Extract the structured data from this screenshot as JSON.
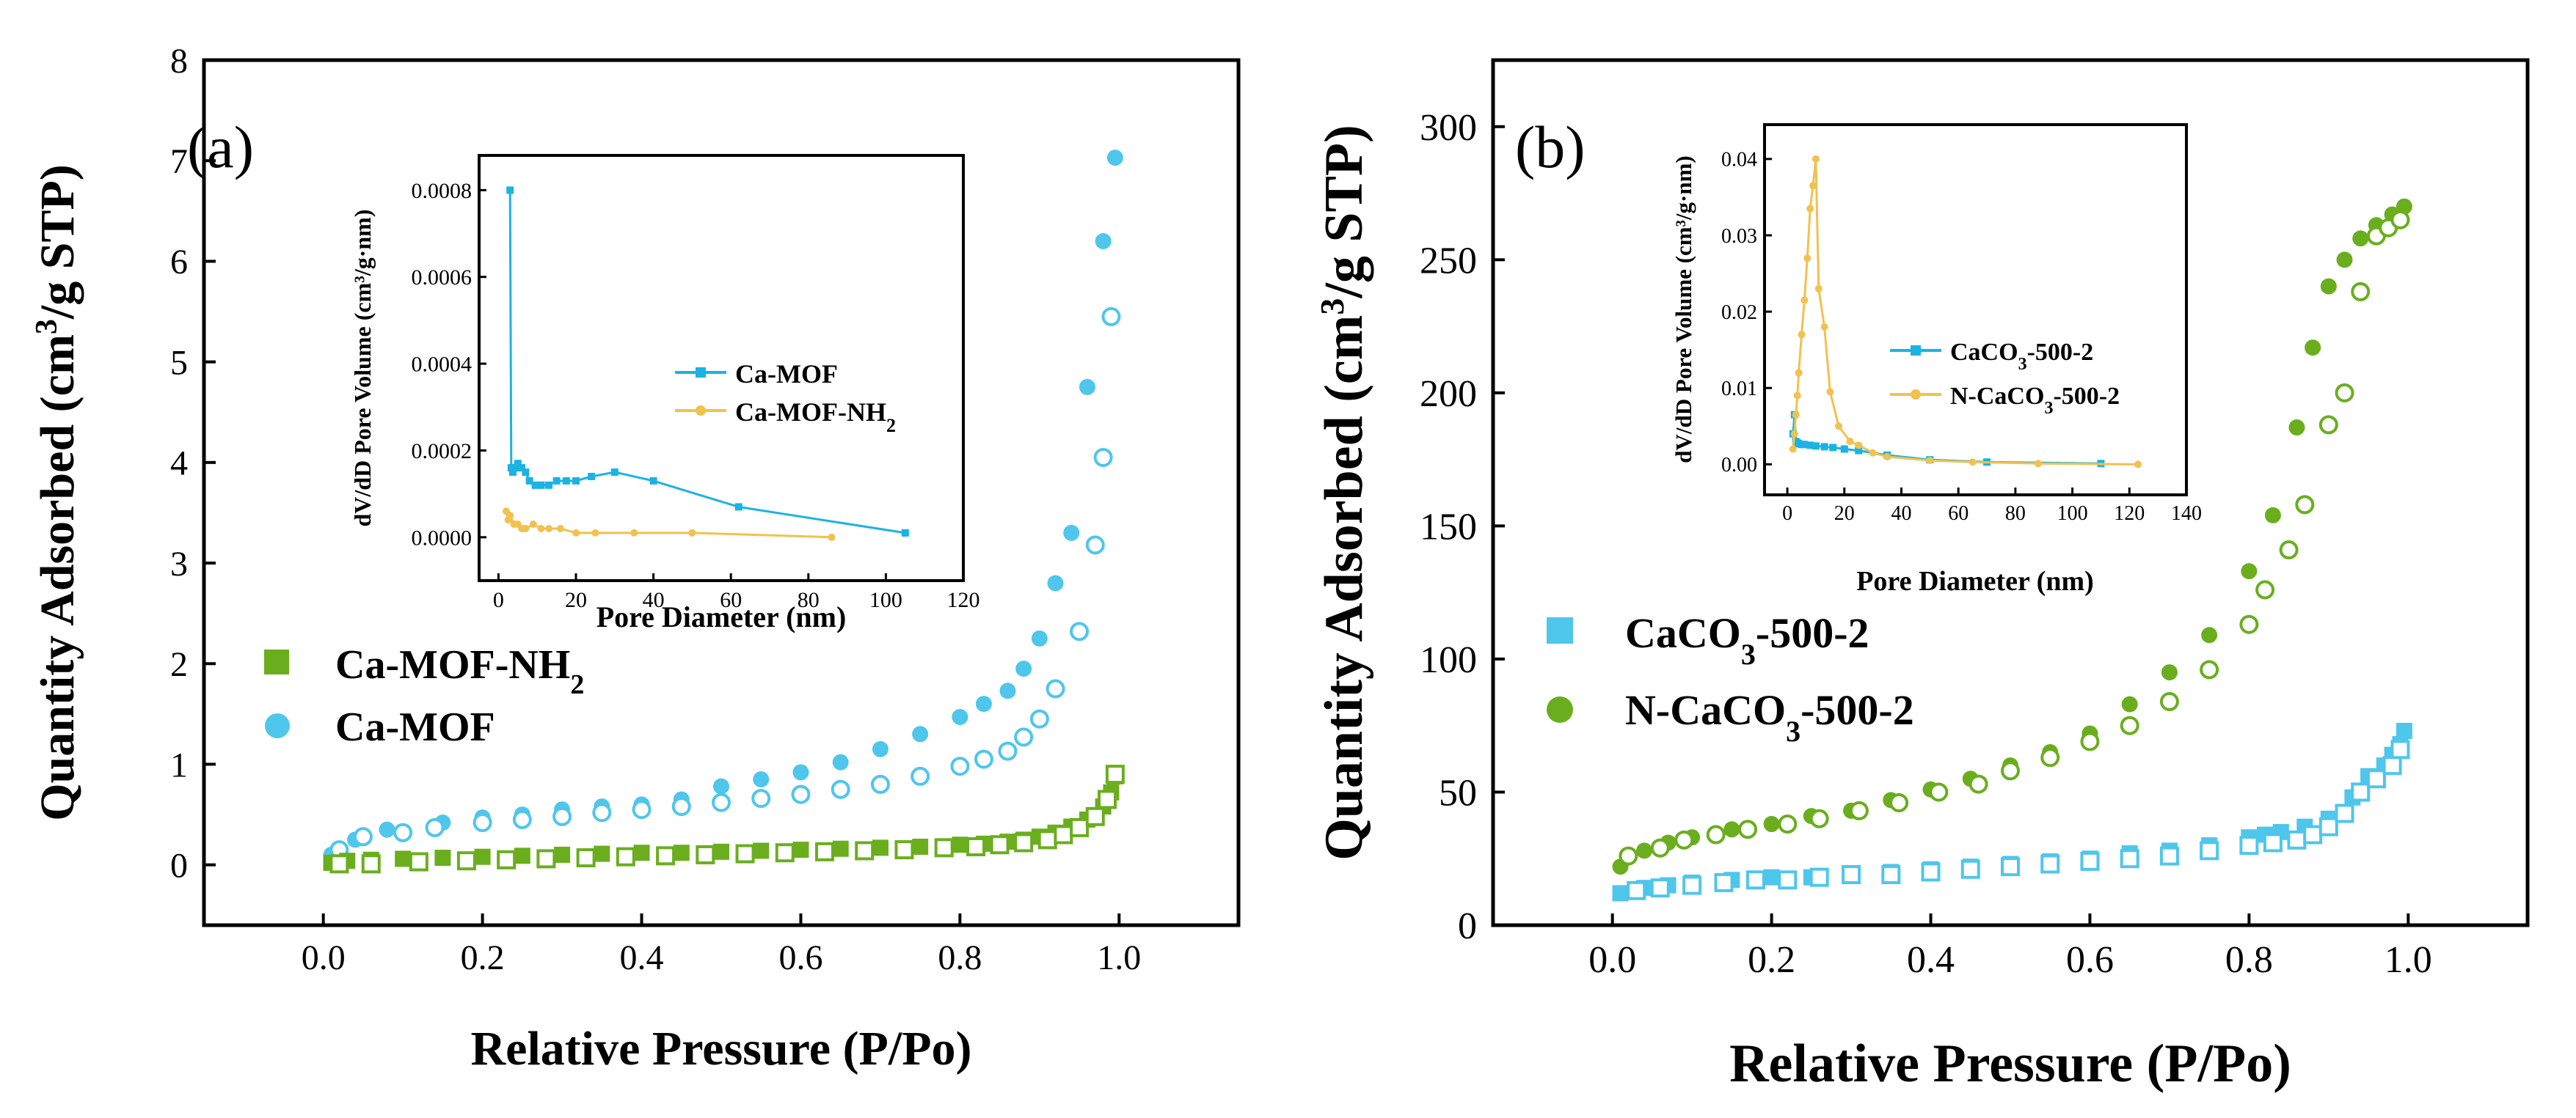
{
  "colors": {
    "blue": "#4FC6EC",
    "green": "#6AAE1E",
    "yellow": "#F2C14E",
    "inset_blue": "#1AB3E3"
  },
  "chart_data": [
    {
      "type": "scatter",
      "panel_label": "(a)",
      "xlabel": "Relative Pressure (P/Po)",
      "ylabel_main": "Quantity Adsorbed (cm",
      "ylabel_sup": "3",
      "ylabel_tail": "/g STP)",
      "xlim": [
        -0.15,
        1.15
      ],
      "ylim": [
        -0.6,
        8
      ],
      "xticks": [
        0.0,
        0.2,
        0.4,
        0.6,
        0.8,
        1.0
      ],
      "xtick_labels": [
        "0.0",
        "0.2",
        "0.4",
        "0.6",
        "0.8",
        "1.0"
      ],
      "yticks": [
        0,
        1,
        2,
        3,
        4,
        5,
        6,
        7,
        8
      ],
      "ytick_labels": [
        "0",
        "1",
        "2",
        "3",
        "4",
        "5",
        "6",
        "7",
        "8"
      ],
      "legend": [
        {
          "marker": "square",
          "color_key": "green",
          "text": "Ca-MOF-NH",
          "sub": "2"
        },
        {
          "marker": "circle",
          "color_key": "blue",
          "text": "Ca-MOF",
          "sub": ""
        }
      ],
      "series": [
        {
          "name": "Ca-MOF adsorption",
          "marker": "circle",
          "filled": true,
          "color_key": "blue",
          "x": [
            0.01,
            0.04,
            0.08,
            0.15,
            0.2,
            0.25,
            0.3,
            0.35,
            0.4,
            0.45,
            0.5,
            0.55,
            0.6,
            0.65,
            0.7,
            0.75,
            0.8,
            0.83,
            0.86,
            0.88,
            0.9,
            0.92,
            0.94,
            0.96,
            0.98,
            0.995
          ],
          "y": [
            0.1,
            0.25,
            0.35,
            0.42,
            0.47,
            0.5,
            0.55,
            0.58,
            0.6,
            0.65,
            0.78,
            0.85,
            0.92,
            1.02,
            1.15,
            1.3,
            1.47,
            1.6,
            1.73,
            1.95,
            2.25,
            2.8,
            3.3,
            4.75,
            6.2,
            7.03
          ]
        },
        {
          "name": "Ca-MOF desorption",
          "marker": "circle",
          "filled": false,
          "color_key": "blue",
          "x": [
            0.02,
            0.05,
            0.1,
            0.14,
            0.2,
            0.25,
            0.3,
            0.35,
            0.4,
            0.45,
            0.5,
            0.55,
            0.6,
            0.65,
            0.7,
            0.75,
            0.8,
            0.83,
            0.86,
            0.88,
            0.9,
            0.92,
            0.95,
            0.97,
            0.98,
            0.99
          ],
          "y": [
            0.15,
            0.28,
            0.32,
            0.37,
            0.42,
            0.45,
            0.48,
            0.52,
            0.55,
            0.58,
            0.62,
            0.66,
            0.7,
            0.75,
            0.8,
            0.88,
            0.98,
            1.05,
            1.13,
            1.27,
            1.45,
            1.75,
            2.32,
            3.18,
            4.05,
            5.45
          ]
        },
        {
          "name": "Ca-MOF-NH2 adsorption",
          "marker": "square",
          "filled": true,
          "color_key": "green",
          "x": [
            0.01,
            0.03,
            0.06,
            0.1,
            0.15,
            0.2,
            0.25,
            0.3,
            0.35,
            0.4,
            0.45,
            0.5,
            0.55,
            0.6,
            0.65,
            0.7,
            0.75,
            0.8,
            0.83,
            0.86,
            0.88,
            0.9,
            0.92,
            0.94,
            0.96,
            0.98,
            0.99,
            0.995
          ],
          "y": [
            0.02,
            0.04,
            0.05,
            0.06,
            0.07,
            0.08,
            0.09,
            0.1,
            0.11,
            0.12,
            0.12,
            0.13,
            0.14,
            0.15,
            0.16,
            0.17,
            0.18,
            0.2,
            0.21,
            0.23,
            0.25,
            0.28,
            0.32,
            0.38,
            0.45,
            0.58,
            0.72,
            0.88
          ]
        },
        {
          "name": "Ca-MOF-NH2 desorption",
          "marker": "square",
          "filled": false,
          "color_key": "green",
          "x": [
            0.02,
            0.06,
            0.12,
            0.18,
            0.23,
            0.28,
            0.33,
            0.38,
            0.43,
            0.48,
            0.53,
            0.58,
            0.63,
            0.68,
            0.73,
            0.78,
            0.82,
            0.85,
            0.88,
            0.91,
            0.93,
            0.95,
            0.97,
            0.985,
            0.995
          ],
          "y": [
            0.01,
            0.01,
            0.03,
            0.04,
            0.05,
            0.06,
            0.07,
            0.08,
            0.09,
            0.1,
            0.11,
            0.12,
            0.13,
            0.14,
            0.15,
            0.17,
            0.18,
            0.2,
            0.22,
            0.25,
            0.3,
            0.37,
            0.48,
            0.65,
            0.9
          ]
        }
      ],
      "inset": {
        "type": "line",
        "xlabel": "Pore Diameter (nm)",
        "ylabel": "dV/dD Pore Volume (cm³/g·nm)",
        "xlim": [
          -5,
          120
        ],
        "ylim": [
          -0.0001,
          0.00088
        ],
        "xticks": [
          0,
          20,
          40,
          60,
          80,
          100,
          120
        ],
        "xtick_labels": [
          "0",
          "20",
          "40",
          "60",
          "80",
          "100",
          "120"
        ],
        "yticks": [
          0.0,
          0.0002,
          0.0004,
          0.0006,
          0.0008
        ],
        "ytick_labels": [
          "0.0000",
          "0.0002",
          "0.0004",
          "0.0006",
          "0.0008"
        ],
        "legend": [
          {
            "color_key": "inset_blue",
            "marker": "square",
            "text": "Ca-MOF",
            "sub": ""
          },
          {
            "color_key": "yellow",
            "marker": "circle",
            "text": "Ca-MOF-NH",
            "sub": "2"
          }
        ],
        "series": [
          {
            "name": "Ca-MOF",
            "color_key": "inset_blue",
            "marker": "square",
            "x": [
              3,
              3.3,
              3.7,
              4.2,
              5,
              6,
              7,
              8,
              9.5,
              11,
              13,
              15,
              17.5,
              20,
              24,
              30,
              40,
              62,
              105
            ],
            "y": [
              0.0008,
              0.00016,
              0.00015,
              0.00016,
              0.00017,
              0.00016,
              0.00015,
              0.00013,
              0.00012,
              0.00012,
              0.00012,
              0.00013,
              0.00013,
              0.00013,
              0.00014,
              0.00015,
              0.00013,
              7e-05,
              1e-05
            ]
          },
          {
            "name": "Ca-MOF-NH2",
            "color_key": "yellow",
            "marker": "circle",
            "x": [
              2,
              2.5,
              3,
              4,
              5,
              6,
              7,
              9,
              11,
              13,
              16,
              20,
              25,
              35,
              50,
              86
            ],
            "y": [
              6e-05,
              4e-05,
              5e-05,
              3e-05,
              3e-05,
              2e-05,
              2e-05,
              3e-05,
              2e-05,
              2e-05,
              2e-05,
              1e-05,
              1e-05,
              1e-05,
              1e-05,
              0.0
            ]
          }
        ]
      }
    },
    {
      "type": "scatter",
      "panel_label": "(b)",
      "xlabel": "Relative Pressure (P/Po)",
      "ylabel_main": "Quantity Adsorbed (cm",
      "ylabel_sup": "3",
      "ylabel_tail": "/g STP)",
      "xlim": [
        -0.15,
        1.15
      ],
      "ylim": [
        0,
        325
      ],
      "xticks": [
        0.0,
        0.2,
        0.4,
        0.6,
        0.8,
        1.0
      ],
      "xtick_labels": [
        "0.0",
        "0.2",
        "0.4",
        "0.6",
        "0.8",
        "1.0"
      ],
      "yticks": [
        0,
        50,
        100,
        150,
        200,
        250,
        300
      ],
      "ytick_labels": [
        "0",
        "50",
        "100",
        "150",
        "200",
        "250",
        "300"
      ],
      "legend": [
        {
          "marker": "square",
          "color_key": "blue",
          "text": "CaCO",
          "sub": "3",
          "tail": "-500-2"
        },
        {
          "marker": "circle",
          "color_key": "green",
          "text": "N-CaCO",
          "sub": "3",
          "tail": "-500-2"
        }
      ],
      "series": [
        {
          "name": "N-CaCO3-500-2 adsorption",
          "marker": "circle",
          "filled": true,
          "color_key": "green",
          "x": [
            0.01,
            0.04,
            0.07,
            0.1,
            0.15,
            0.2,
            0.25,
            0.3,
            0.35,
            0.4,
            0.45,
            0.5,
            0.55,
            0.6,
            0.65,
            0.7,
            0.75,
            0.8,
            0.83,
            0.86,
            0.88,
            0.9,
            0.92,
            0.94,
            0.96,
            0.98,
            0.995
          ],
          "y": [
            22,
            28,
            31,
            33,
            36,
            38,
            41,
            43,
            47,
            51,
            55,
            60,
            65,
            72,
            83,
            95,
            109,
            133,
            154,
            187,
            217,
            240,
            250,
            258,
            263,
            267,
            270
          ]
        },
        {
          "name": "N-CaCO3-500-2 desorption",
          "marker": "circle",
          "filled": false,
          "color_key": "green",
          "x": [
            0.02,
            0.06,
            0.09,
            0.13,
            0.17,
            0.22,
            0.26,
            0.31,
            0.36,
            0.41,
            0.46,
            0.5,
            0.55,
            0.6,
            0.65,
            0.7,
            0.75,
            0.8,
            0.82,
            0.85,
            0.87,
            0.9,
            0.92,
            0.94,
            0.96,
            0.975,
            0.99
          ],
          "y": [
            26,
            29,
            32,
            34,
            36,
            38,
            40,
            43,
            46,
            50,
            53,
            58,
            63,
            69,
            75,
            84,
            96,
            113,
            126,
            141,
            158,
            188,
            200,
            238,
            259,
            262,
            265
          ]
        },
        {
          "name": "CaCO3-500-2 adsorption",
          "marker": "square",
          "filled": true,
          "color_key": "blue",
          "x": [
            0.01,
            0.04,
            0.07,
            0.1,
            0.15,
            0.2,
            0.25,
            0.3,
            0.35,
            0.4,
            0.45,
            0.5,
            0.55,
            0.6,
            0.65,
            0.7,
            0.75,
            0.8,
            0.82,
            0.84,
            0.87,
            0.9,
            0.93,
            0.95,
            0.97,
            0.98,
            0.99,
            0.995
          ],
          "y": [
            12,
            14,
            15,
            16,
            17,
            18,
            18,
            19,
            20,
            21,
            22,
            23,
            24,
            25,
            27,
            28,
            30,
            33,
            34,
            35,
            37,
            40,
            48,
            56,
            60,
            64,
            68,
            73
          ]
        },
        {
          "name": "CaCO3-500-2 desorption",
          "marker": "square",
          "filled": false,
          "color_key": "blue",
          "x": [
            0.03,
            0.06,
            0.1,
            0.14,
            0.18,
            0.22,
            0.26,
            0.3,
            0.35,
            0.4,
            0.45,
            0.5,
            0.55,
            0.6,
            0.65,
            0.7,
            0.75,
            0.8,
            0.83,
            0.86,
            0.88,
            0.9,
            0.92,
            0.94,
            0.96,
            0.98,
            0.99
          ],
          "y": [
            13,
            14,
            15,
            16,
            17,
            17,
            18,
            19,
            19,
            20,
            21,
            22,
            23,
            24,
            25,
            26,
            28,
            30,
            31,
            32,
            34,
            37,
            42,
            50,
            55,
            60,
            66
          ]
        }
      ],
      "inset": {
        "type": "line",
        "xlabel": "Pore Diameter (nm)",
        "ylabel": "dV/dD Pore Volume (cm³/g·nm)",
        "xlim": [
          -8,
          140
        ],
        "ylim": [
          -0.004,
          0.0445
        ],
        "xticks": [
          0,
          20,
          40,
          60,
          80,
          100,
          120,
          140
        ],
        "xtick_labels": [
          "0",
          "20",
          "40",
          "60",
          "80",
          "100",
          "120",
          "140"
        ],
        "yticks": [
          0.0,
          0.01,
          0.02,
          0.03,
          0.04
        ],
        "ytick_labels": [
          "0.00",
          "0.01",
          "0.02",
          "0.03",
          "0.04"
        ],
        "legend": [
          {
            "color_key": "inset_blue",
            "marker": "square",
            "text": "CaCO",
            "sub": "3",
            "tail": "-500-2"
          },
          {
            "color_key": "yellow",
            "marker": "circle",
            "text": "N-CaCO",
            "sub": "3",
            "tail": "-500-2"
          }
        ],
        "series": [
          {
            "name": "CaCO3-500-2",
            "color_key": "inset_blue",
            "marker": "square",
            "x": [
              2,
              2.5,
              3,
              3.5,
              4,
              5,
              6,
              8,
              10,
              13,
              16,
              20,
              25,
              35,
              50,
              70,
              110
            ],
            "y": [
              0.004,
              0.0065,
              0.003,
              0.0028,
              0.0027,
              0.0026,
              0.0026,
              0.0025,
              0.0024,
              0.0023,
              0.0022,
              0.002,
              0.0018,
              0.0012,
              0.0006,
              0.0003,
              0.0001
            ]
          },
          {
            "name": "N-CaCO3-500-2",
            "color_key": "yellow",
            "marker": "circle",
            "x": [
              2,
              2.5,
              3,
              3.5,
              4,
              5,
              6,
              7,
              8,
              9,
              10,
              11,
              13,
              15,
              18,
              22,
              25,
              30,
              35,
              50,
              65,
              88,
              123
            ],
            "y": [
              0.002,
              0.004,
              0.0065,
              0.009,
              0.012,
              0.017,
              0.0215,
              0.027,
              0.0335,
              0.0365,
              0.04,
              0.023,
              0.018,
              0.0095,
              0.005,
              0.003,
              0.0025,
              0.0015,
              0.001,
              0.0005,
              0.0003,
              0.0001,
              0.0
            ]
          }
        ]
      }
    }
  ]
}
